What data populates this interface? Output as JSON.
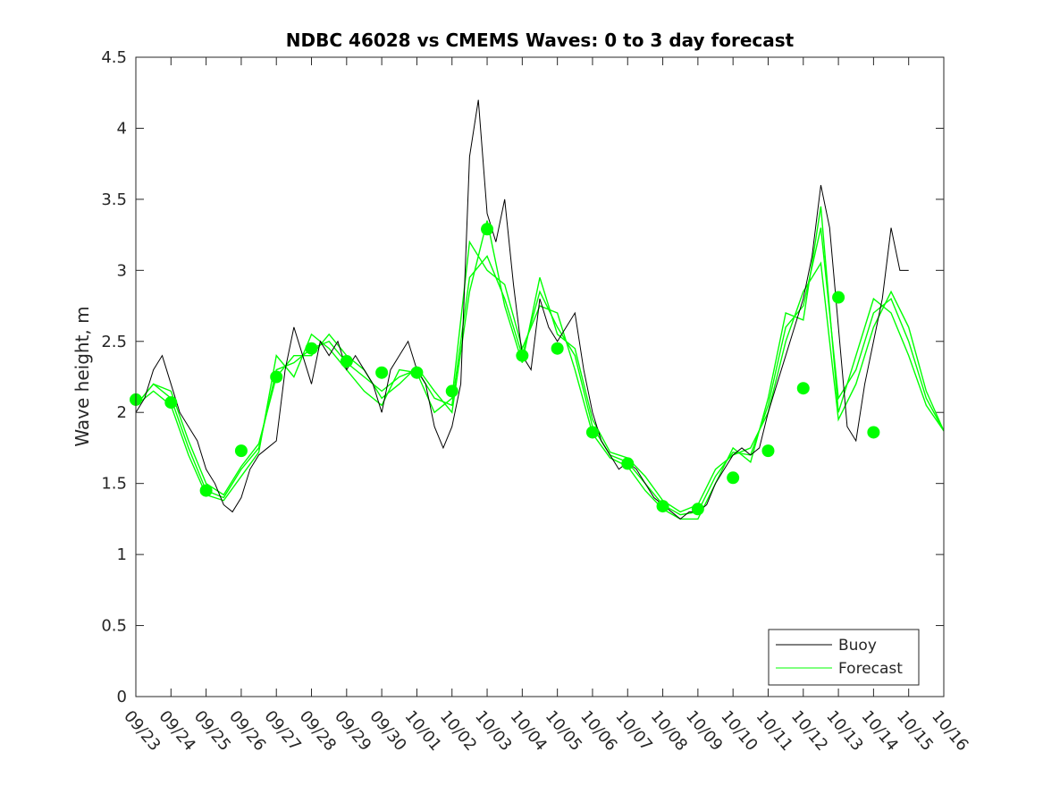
{
  "chart_data": {
    "type": "line",
    "title": "NDBC 46028 vs CMEMS Waves: 0 to 3 day forecast",
    "xlabel": "",
    "ylabel": "Wave height, m",
    "ylim": [
      0,
      4.5
    ],
    "xlim_days": [
      0,
      23
    ],
    "x_unit": "days since 09/23",
    "yticks": [
      "0",
      "0.5",
      "1",
      "1.5",
      "2",
      "2.5",
      "3",
      "3.5",
      "4",
      "4.5"
    ],
    "xticks": [
      "09/23",
      "09/24",
      "09/25",
      "09/26",
      "09/27",
      "09/28",
      "09/29",
      "09/30",
      "10/01",
      "10/02",
      "10/03",
      "10/04",
      "10/05",
      "10/06",
      "10/07",
      "10/08",
      "10/09",
      "10/10",
      "10/11",
      "10/12",
      "10/13",
      "10/14",
      "10/15",
      "10/16"
    ],
    "legend": {
      "placement": "bottom-right",
      "entries": [
        "Buoy",
        "Forecast"
      ]
    },
    "colors": {
      "buoy": "#000000",
      "forecast": "#00ff00"
    },
    "buoy": {
      "step_days": 0.25,
      "values": [
        2.0,
        2.1,
        2.3,
        2.4,
        2.2,
        2.0,
        1.9,
        1.8,
        1.6,
        1.5,
        1.35,
        1.3,
        1.4,
        1.6,
        1.7,
        1.75,
        1.8,
        2.3,
        2.6,
        2.4,
        2.2,
        2.5,
        2.4,
        2.5,
        2.3,
        2.4,
        2.3,
        2.2,
        2.0,
        2.3,
        2.4,
        2.5,
        2.3,
        2.2,
        1.9,
        1.75,
        1.9,
        2.2,
        3.8,
        4.2,
        3.4,
        3.2,
        3.5,
        2.9,
        2.4,
        2.3,
        2.8,
        2.6,
        2.5,
        2.6,
        2.7,
        2.3,
        2.0,
        1.8,
        1.7,
        1.6,
        1.65,
        1.6,
        1.5,
        1.4,
        1.35,
        1.3,
        1.25,
        1.3,
        1.3,
        1.35,
        1.5,
        1.6,
        1.7,
        1.75,
        1.7,
        1.75,
        2.0,
        2.2,
        2.4,
        2.6,
        2.8,
        3.1,
        3.6,
        3.3,
        2.6,
        1.9,
        1.8,
        2.2,
        2.5,
        2.8,
        3.3,
        3.0,
        3.0
      ]
    },
    "forecast": {
      "step_days": 0.5,
      "series": [
        {
          "name": "Forecast",
          "values": [
            2.05,
            2.2,
            2.1,
            1.75,
            1.45,
            1.4,
            1.6,
            1.75,
            2.3,
            2.35,
            2.45,
            2.5,
            2.35,
            2.25,
            2.15,
            2.25,
            2.3,
            2.1,
            2.05,
            2.95,
            3.1,
            2.8,
            2.4,
            2.85,
            2.6,
            2.4,
            1.9,
            1.7,
            1.65,
            1.5,
            1.35,
            1.28,
            1.3,
            1.55,
            1.72,
            1.7,
            2.05,
            2.6,
            2.75,
            3.3,
            2.1,
            2.3,
            2.7,
            2.8,
            2.5,
            2.1,
            1.87
          ]
        },
        {
          "name": "Forecast",
          "values": [
            2.05,
            2.15,
            2.05,
            1.7,
            1.42,
            1.38,
            1.55,
            1.72,
            2.4,
            2.25,
            2.55,
            2.45,
            2.3,
            2.15,
            2.05,
            2.3,
            2.28,
            2.0,
            2.1,
            3.2,
            3.0,
            2.9,
            2.45,
            2.75,
            2.7,
            2.3,
            1.85,
            1.68,
            1.62,
            1.45,
            1.32,
            1.25,
            1.25,
            1.5,
            1.75,
            1.65,
            2.1,
            2.7,
            2.65,
            3.45,
            2.0,
            2.4,
            2.8,
            2.7,
            2.4,
            2.05,
            1.87
          ]
        },
        {
          "name": "Forecast",
          "values": [
            2.05,
            2.2,
            2.15,
            1.8,
            1.5,
            1.42,
            1.62,
            1.78,
            2.25,
            2.4,
            2.4,
            2.55,
            2.4,
            2.3,
            2.1,
            2.2,
            2.32,
            2.15,
            2.0,
            2.85,
            3.35,
            2.75,
            2.35,
            2.95,
            2.55,
            2.45,
            1.95,
            1.72,
            1.68,
            1.55,
            1.38,
            1.3,
            1.35,
            1.6,
            1.7,
            1.75,
            2.0,
            2.5,
            2.85,
            3.05,
            1.95,
            2.2,
            2.6,
            2.85,
            2.6,
            2.15,
            1.87
          ]
        }
      ]
    },
    "dots": {
      "x_days": [
        0,
        1,
        2,
        3,
        4,
        5,
        6,
        7,
        8,
        9,
        10,
        11,
        12,
        13,
        14,
        15,
        16,
        17,
        18,
        19,
        20,
        21
      ],
      "values": [
        2.09,
        2.07,
        1.45,
        1.73,
        2.25,
        2.45,
        2.36,
        2.28,
        2.28,
        2.15,
        3.29,
        2.4,
        2.45,
        1.86,
        1.64,
        1.34,
        1.32,
        1.54,
        1.73,
        2.17,
        2.81,
        1.86
      ]
    }
  }
}
